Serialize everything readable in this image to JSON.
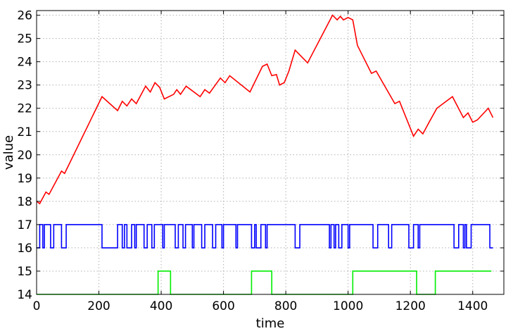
{
  "chart_data": {
    "type": "line",
    "title": "",
    "xlabel": "time",
    "ylabel": "value",
    "xlim": [
      0,
      1500
    ],
    "ylim": [
      14,
      26.2
    ],
    "xticks": [
      0,
      200,
      400,
      600,
      800,
      1000,
      1200,
      1400
    ],
    "yticks": [
      14,
      15,
      16,
      17,
      18,
      19,
      20,
      21,
      22,
      23,
      24,
      25,
      26
    ],
    "grid": true,
    "legend": "none",
    "series": [
      {
        "color": "#ff0000",
        "step": false,
        "points": [
          [
            0,
            18.0
          ],
          [
            10,
            17.9
          ],
          [
            30,
            18.4
          ],
          [
            40,
            18.3
          ],
          [
            80,
            19.3
          ],
          [
            90,
            19.2
          ],
          [
            210,
            22.5
          ],
          [
            260,
            21.9
          ],
          [
            275,
            22.3
          ],
          [
            290,
            22.1
          ],
          [
            305,
            22.4
          ],
          [
            320,
            22.2
          ],
          [
            350,
            22.95
          ],
          [
            365,
            22.7
          ],
          [
            380,
            23.1
          ],
          [
            395,
            22.9
          ],
          [
            410,
            22.4
          ],
          [
            440,
            22.6
          ],
          [
            450,
            22.8
          ],
          [
            462,
            22.6
          ],
          [
            480,
            22.95
          ],
          [
            495,
            22.8
          ],
          [
            525,
            22.5
          ],
          [
            540,
            22.8
          ],
          [
            555,
            22.65
          ],
          [
            590,
            23.3
          ],
          [
            605,
            23.1
          ],
          [
            620,
            23.4
          ],
          [
            685,
            22.7
          ],
          [
            725,
            23.8
          ],
          [
            740,
            23.9
          ],
          [
            755,
            23.4
          ],
          [
            770,
            23.45
          ],
          [
            780,
            23.0
          ],
          [
            795,
            23.1
          ],
          [
            810,
            23.6
          ],
          [
            830,
            24.5
          ],
          [
            870,
            23.95
          ],
          [
            950,
            26.0
          ],
          [
            965,
            25.8
          ],
          [
            975,
            25.95
          ],
          [
            985,
            25.8
          ],
          [
            1000,
            25.9
          ],
          [
            1015,
            25.8
          ],
          [
            1030,
            24.7
          ],
          [
            1075,
            23.5
          ],
          [
            1090,
            23.6
          ],
          [
            1150,
            22.2
          ],
          [
            1165,
            22.3
          ],
          [
            1210,
            20.8
          ],
          [
            1225,
            21.1
          ],
          [
            1240,
            20.9
          ],
          [
            1260,
            21.4
          ],
          [
            1285,
            22.0
          ],
          [
            1335,
            22.5
          ],
          [
            1370,
            21.6
          ],
          [
            1385,
            21.8
          ],
          [
            1400,
            21.4
          ],
          [
            1415,
            21.5
          ],
          [
            1450,
            22.0
          ],
          [
            1465,
            21.6
          ]
        ]
      },
      {
        "color": "#0000ff",
        "step": true,
        "points": [
          [
            0,
            16
          ],
          [
            10,
            17
          ],
          [
            20,
            16
          ],
          [
            25,
            17
          ],
          [
            45,
            16
          ],
          [
            55,
            17
          ],
          [
            80,
            16
          ],
          [
            95,
            17
          ],
          [
            210,
            16
          ],
          [
            260,
            17
          ],
          [
            275,
            16
          ],
          [
            282,
            17
          ],
          [
            290,
            16
          ],
          [
            305,
            17
          ],
          [
            315,
            16
          ],
          [
            320,
            17
          ],
          [
            345,
            16
          ],
          [
            355,
            17
          ],
          [
            370,
            16
          ],
          [
            378,
            17
          ],
          [
            405,
            16
          ],
          [
            410,
            17
          ],
          [
            445,
            16
          ],
          [
            455,
            17
          ],
          [
            470,
            16
          ],
          [
            478,
            17
          ],
          [
            500,
            16
          ],
          [
            505,
            17
          ],
          [
            530,
            16
          ],
          [
            540,
            17
          ],
          [
            565,
            16
          ],
          [
            575,
            17
          ],
          [
            595,
            16
          ],
          [
            600,
            17
          ],
          [
            640,
            16
          ],
          [
            645,
            17
          ],
          [
            690,
            16
          ],
          [
            700,
            17
          ],
          [
            705,
            16
          ],
          [
            720,
            17
          ],
          [
            735,
            16
          ],
          [
            740,
            17
          ],
          [
            830,
            16
          ],
          [
            845,
            17
          ],
          [
            940,
            16
          ],
          [
            945,
            17
          ],
          [
            955,
            16
          ],
          [
            960,
            17
          ],
          [
            970,
            16
          ],
          [
            980,
            17
          ],
          [
            1000,
            16
          ],
          [
            1005,
            17
          ],
          [
            1080,
            16
          ],
          [
            1095,
            17
          ],
          [
            1130,
            16
          ],
          [
            1140,
            17
          ],
          [
            1195,
            16
          ],
          [
            1210,
            17
          ],
          [
            1225,
            16
          ],
          [
            1230,
            17
          ],
          [
            1340,
            16
          ],
          [
            1355,
            17
          ],
          [
            1370,
            16
          ],
          [
            1375,
            17
          ],
          [
            1380,
            16
          ],
          [
            1395,
            17
          ],
          [
            1455,
            16
          ],
          [
            1465,
            16
          ]
        ]
      },
      {
        "color": "#00ee00",
        "step": true,
        "points": [
          [
            0,
            14
          ],
          [
            390,
            15
          ],
          [
            430,
            14
          ],
          [
            690,
            15
          ],
          [
            755,
            14
          ],
          [
            1015,
            15
          ],
          [
            1220,
            14
          ],
          [
            1280,
            15
          ],
          [
            1460,
            15
          ]
        ]
      }
    ]
  }
}
